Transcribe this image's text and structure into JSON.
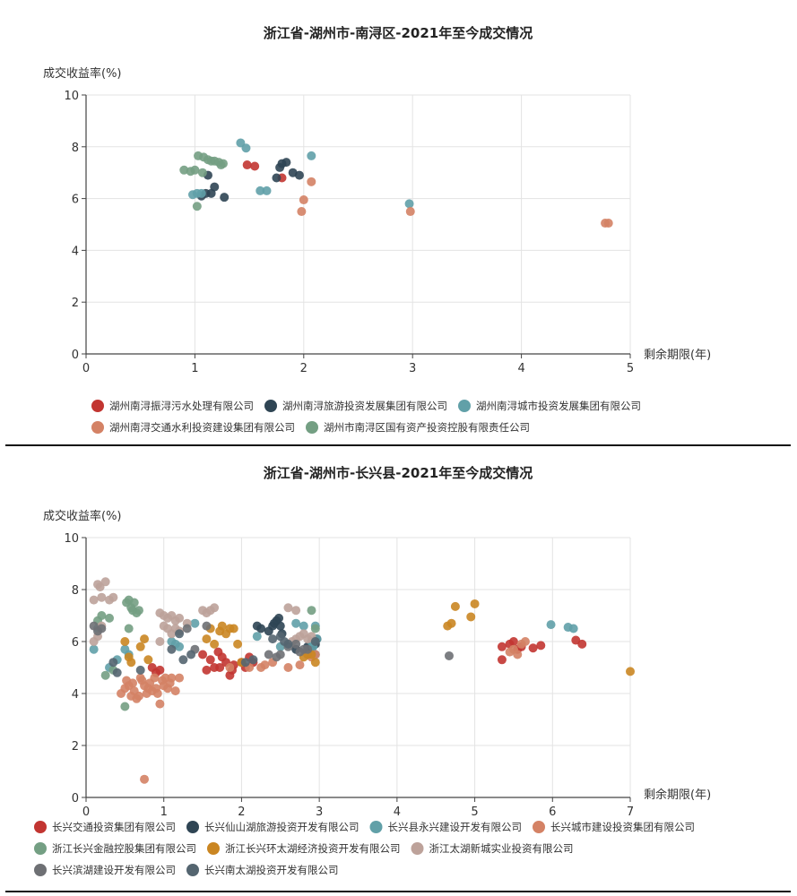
{
  "chart_data": [
    {
      "type": "scatter",
      "title": "浙江省-湖州市-南浔区-2021年至今成交情况",
      "xlabel": "剩余期限(年)",
      "ylabel": "成交收益率(%)",
      "xlim": [
        0,
        5
      ],
      "ylim": [
        0,
        10
      ],
      "xticks": [
        "0",
        "1",
        "2",
        "3",
        "4",
        "5"
      ],
      "yticks": [
        "0",
        "2",
        "4",
        "6",
        "8",
        "10"
      ],
      "grid": true,
      "legend_position": "bottom",
      "series": [
        {
          "name": "湖州南浔振浔污水处理有限公司",
          "color": "#c23531",
          "points": [
            [
              1.48,
              7.3
            ],
            [
              1.55,
              7.25
            ],
            [
              1.8,
              6.8
            ]
          ]
        },
        {
          "name": "湖州南浔旅游投资发展集团有限公司",
          "color": "#2f4554",
          "points": [
            [
              1.06,
              6.1
            ],
            [
              1.1,
              6.2
            ],
            [
              1.12,
              6.9
            ],
            [
              1.15,
              6.2
            ],
            [
              1.18,
              6.45
            ],
            [
              1.27,
              6.05
            ],
            [
              1.75,
              6.8
            ],
            [
              1.78,
              7.2
            ],
            [
              1.8,
              7.35
            ],
            [
              1.84,
              7.4
            ],
            [
              1.9,
              7.0
            ],
            [
              1.96,
              6.9
            ]
          ]
        },
        {
          "name": "湖州南浔城市投资发展集团有限公司",
          "color": "#61a0a8",
          "points": [
            [
              0.98,
              6.15
            ],
            [
              1.02,
              6.2
            ],
            [
              1.06,
              6.2
            ],
            [
              1.42,
              8.15
            ],
            [
              1.47,
              7.95
            ],
            [
              1.6,
              6.3
            ],
            [
              1.66,
              6.3
            ],
            [
              2.07,
              7.65
            ],
            [
              2.97,
              5.8
            ]
          ]
        },
        {
          "name": "湖州南浔交通水利投资建设集团有限公司",
          "color": "#d48265",
          "points": [
            [
              1.98,
              5.5
            ],
            [
              2.0,
              5.95
            ],
            [
              2.07,
              6.65
            ],
            [
              2.98,
              5.5
            ],
            [
              4.77,
              5.05
            ],
            [
              4.8,
              5.05
            ]
          ]
        },
        {
          "name": "湖州市南浔区国有资产投资控股有限责任公司",
          "color": "#749f83",
          "points": [
            [
              0.9,
              7.1
            ],
            [
              0.96,
              7.05
            ],
            [
              1.0,
              7.1
            ],
            [
              1.03,
              7.65
            ],
            [
              1.07,
              7.0
            ],
            [
              1.08,
              7.6
            ],
            [
              1.12,
              7.5
            ],
            [
              1.15,
              7.45
            ],
            [
              1.18,
              7.45
            ],
            [
              1.22,
              7.4
            ],
            [
              1.24,
              7.3
            ],
            [
              1.26,
              7.35
            ],
            [
              1.02,
              5.7
            ]
          ]
        }
      ]
    },
    {
      "type": "scatter",
      "title": "浙江省-湖州市-长兴县-2021年至今成交情况",
      "xlabel": "剩余期限(年)",
      "ylabel": "成交收益率(%)",
      "xlim": [
        0,
        7
      ],
      "ylim": [
        0,
        10
      ],
      "xticks": [
        "0",
        "1",
        "2",
        "3",
        "4",
        "5",
        "6",
        "7"
      ],
      "yticks": [
        "0",
        "2",
        "4",
        "6",
        "8",
        "10"
      ],
      "grid": true,
      "legend_position": "bottom",
      "series": [
        {
          "name": "长兴交通投资集团有限公司",
          "color": "#c23531",
          "points": [
            [
              0.85,
              5.0
            ],
            [
              0.9,
              4.8
            ],
            [
              0.95,
              4.9
            ],
            [
              1.5,
              5.5
            ],
            [
              1.55,
              4.9
            ],
            [
              1.6,
              5.3
            ],
            [
              1.65,
              5.0
            ],
            [
              1.7,
              5.6
            ],
            [
              1.72,
              5.0
            ],
            [
              1.75,
              5.4
            ],
            [
              1.8,
              5.2
            ],
            [
              1.85,
              4.7
            ],
            [
              1.88,
              4.9
            ],
            [
              1.9,
              5.1
            ],
            [
              2.0,
              5.2
            ],
            [
              2.05,
              5.0
            ],
            [
              2.1,
              5.4
            ],
            [
              2.15,
              5.2
            ],
            [
              5.35,
              5.3
            ],
            [
              5.35,
              5.8
            ],
            [
              5.45,
              5.9
            ],
            [
              5.5,
              6.0
            ],
            [
              5.55,
              5.7
            ],
            [
              5.6,
              5.8
            ],
            [
              5.75,
              5.75
            ],
            [
              5.85,
              5.85
            ],
            [
              6.3,
              6.05
            ],
            [
              6.38,
              5.9
            ]
          ]
        },
        {
          "name": "长兴仙山湖旅游投资开发有限公司",
          "color": "#2f4554",
          "points": [
            [
              2.35,
              6.4
            ],
            [
              2.4,
              6.6
            ],
            [
              2.42,
              6.7
            ],
            [
              2.45,
              6.8
            ],
            [
              2.48,
              6.9
            ],
            [
              2.5,
              6.6
            ],
            [
              2.52,
              6.3
            ],
            [
              2.2,
              6.6
            ],
            [
              2.25,
              6.5
            ],
            [
              2.85,
              5.8
            ],
            [
              2.9,
              5.7
            ],
            [
              2.95,
              5.9
            ],
            [
              2.97,
              6.1
            ],
            [
              2.7,
              5.7
            ]
          ]
        },
        {
          "name": "长兴县永兴建设开发有限公司",
          "color": "#61a0a8",
          "points": [
            [
              0.1,
              5.7
            ],
            [
              0.15,
              6.5
            ],
            [
              0.3,
              5.0
            ],
            [
              0.4,
              5.3
            ],
            [
              0.5,
              5.7
            ],
            [
              0.55,
              5.5
            ],
            [
              1.1,
              6.0
            ],
            [
              1.15,
              5.9
            ],
            [
              1.2,
              5.8
            ],
            [
              1.4,
              6.7
            ],
            [
              2.2,
              6.2
            ],
            [
              2.5,
              5.8
            ],
            [
              2.8,
              6.6
            ],
            [
              2.9,
              6.0
            ],
            [
              2.92,
              5.8
            ],
            [
              2.95,
              6.6
            ],
            [
              2.97,
              6.1
            ],
            [
              2.7,
              6.7
            ],
            [
              5.98,
              6.65
            ],
            [
              6.2,
              6.55
            ],
            [
              6.27,
              6.5
            ],
            [
              2.95,
              5.5
            ]
          ]
        },
        {
          "name": "长兴城市建设投资集团有限公司",
          "color": "#d48265",
          "points": [
            [
              0.45,
              4.0
            ],
            [
              0.5,
              4.2
            ],
            [
              0.52,
              4.5
            ],
            [
              0.55,
              4.3
            ],
            [
              0.58,
              3.9
            ],
            [
              0.6,
              4.4
            ],
            [
              0.62,
              4.1
            ],
            [
              0.65,
              3.8
            ],
            [
              0.68,
              3.9
            ],
            [
              0.7,
              4.6
            ],
            [
              0.72,
              4.5
            ],
            [
              0.75,
              4.3
            ],
            [
              0.78,
              4.0
            ],
            [
              0.8,
              4.2
            ],
            [
              0.82,
              4.4
            ],
            [
              0.85,
              4.1
            ],
            [
              0.88,
              4.6
            ],
            [
              0.9,
              4.2
            ],
            [
              0.92,
              4.0
            ],
            [
              0.95,
              3.6
            ],
            [
              0.98,
              4.5
            ],
            [
              1.0,
              4.3
            ],
            [
              1.02,
              4.6
            ],
            [
              1.05,
              4.2
            ],
            [
              1.08,
              4.4
            ],
            [
              1.1,
              4.6
            ],
            [
              1.15,
              4.1
            ],
            [
              1.2,
              4.6
            ],
            [
              0.75,
              0.7
            ],
            [
              1.85,
              5.0
            ],
            [
              2.1,
              5.0
            ],
            [
              2.25,
              5.0
            ],
            [
              2.3,
              5.1
            ],
            [
              2.4,
              5.2
            ],
            [
              2.6,
              5.0
            ],
            [
              2.75,
              5.1
            ],
            [
              2.9,
              5.4
            ],
            [
              2.95,
              5.5
            ],
            [
              5.45,
              5.6
            ],
            [
              5.5,
              5.7
            ],
            [
              5.55,
              5.5
            ],
            [
              5.6,
              5.9
            ],
            [
              5.65,
              6.0
            ]
          ]
        },
        {
          "name": "浙江长兴金融控股集团有限公司",
          "color": "#749f83",
          "points": [
            [
              0.15,
              6.8
            ],
            [
              0.2,
              7.0
            ],
            [
              0.3,
              6.9
            ],
            [
              0.52,
              7.5
            ],
            [
              0.55,
              7.6
            ],
            [
              0.58,
              7.3
            ],
            [
              0.6,
              7.2
            ],
            [
              0.62,
              7.5
            ],
            [
              0.65,
              7.1
            ],
            [
              0.68,
              7.2
            ],
            [
              0.55,
              6.5
            ],
            [
              0.5,
              3.5
            ],
            [
              0.35,
              4.9
            ],
            [
              0.25,
              4.7
            ],
            [
              2.9,
              7.2
            ],
            [
              2.95,
              6.5
            ]
          ]
        },
        {
          "name": "浙江长兴环太湖经济投资开发有限公司",
          "color": "#ca8622",
          "points": [
            [
              0.5,
              6.0
            ],
            [
              0.55,
              5.4
            ],
            [
              0.58,
              5.2
            ],
            [
              0.7,
              5.8
            ],
            [
              0.8,
              5.3
            ],
            [
              0.75,
              6.1
            ],
            [
              1.55,
              6.1
            ],
            [
              1.6,
              6.5
            ],
            [
              1.65,
              5.9
            ],
            [
              1.72,
              6.4
            ],
            [
              1.75,
              6.6
            ],
            [
              1.8,
              6.3
            ],
            [
              1.85,
              6.5
            ],
            [
              1.9,
              6.5
            ],
            [
              1.95,
              5.9
            ],
            [
              2.0,
              5.2
            ],
            [
              2.8,
              5.4
            ],
            [
              2.85,
              5.5
            ],
            [
              2.9,
              5.5
            ],
            [
              2.95,
              5.2
            ],
            [
              4.65,
              6.6
            ],
            [
              4.7,
              6.7
            ],
            [
              4.75,
              7.35
            ],
            [
              4.95,
              6.95
            ],
            [
              5.0,
              7.45
            ],
            [
              7.0,
              4.85
            ]
          ]
        },
        {
          "name": "浙江太湖新城实业投资有限公司",
          "color": "#bda29a",
          "points": [
            [
              0.1,
              7.6
            ],
            [
              0.15,
              8.2
            ],
            [
              0.18,
              8.1
            ],
            [
              0.2,
              7.7
            ],
            [
              0.25,
              8.3
            ],
            [
              0.3,
              7.6
            ],
            [
              0.35,
              7.7
            ],
            [
              0.95,
              7.1
            ],
            [
              1.0,
              7.0
            ],
            [
              1.05,
              6.9
            ],
            [
              1.1,
              7.0
            ],
            [
              1.15,
              6.8
            ],
            [
              1.2,
              6.9
            ],
            [
              1.3,
              6.7
            ],
            [
              1.0,
              6.6
            ],
            [
              1.05,
              6.5
            ],
            [
              1.1,
              6.3
            ],
            [
              1.15,
              6.5
            ],
            [
              1.2,
              6.4
            ],
            [
              1.5,
              7.2
            ],
            [
              1.55,
              7.1
            ],
            [
              1.6,
              7.2
            ],
            [
              1.65,
              7.3
            ],
            [
              2.6,
              7.3
            ],
            [
              2.7,
              7.2
            ],
            [
              2.65,
              6.0
            ],
            [
              2.7,
              6.1
            ],
            [
              2.75,
              6.2
            ],
            [
              2.8,
              6.3
            ],
            [
              2.85,
              6.1
            ],
            [
              2.9,
              6.2
            ],
            [
              0.1,
              6.0
            ],
            [
              0.15,
              6.2
            ],
            [
              0.2,
              6.6
            ],
            [
              0.95,
              6.0
            ]
          ]
        },
        {
          "name": "长兴滨湖建设开发有限公司",
          "color": "#6e7074",
          "points": [
            [
              0.1,
              6.6
            ],
            [
              0.15,
              6.4
            ],
            [
              0.2,
              6.5
            ],
            [
              1.3,
              6.5
            ],
            [
              1.4,
              5.7
            ],
            [
              1.55,
              6.6
            ],
            [
              2.35,
              5.5
            ],
            [
              2.45,
              5.4
            ],
            [
              2.5,
              5.5
            ],
            [
              2.6,
              5.8
            ],
            [
              2.7,
              5.9
            ],
            [
              2.75,
              5.6
            ],
            [
              2.8,
              5.7
            ],
            [
              2.85,
              5.7
            ],
            [
              4.67,
              5.45
            ]
          ]
        },
        {
          "name": "长兴南太湖投资开发有限公司",
          "color": "#546570",
          "points": [
            [
              0.35,
              5.2
            ],
            [
              0.4,
              4.8
            ],
            [
              0.7,
              4.9
            ],
            [
              1.25,
              5.3
            ],
            [
              1.35,
              5.5
            ],
            [
              1.2,
              6.3
            ],
            [
              1.1,
              5.7
            ],
            [
              2.05,
              5.2
            ],
            [
              2.15,
              5.3
            ],
            [
              2.4,
              6.1
            ],
            [
              2.5,
              6.2
            ],
            [
              2.55,
              6.0
            ],
            [
              2.6,
              5.9
            ],
            [
              2.95,
              6.0
            ]
          ]
        }
      ]
    }
  ]
}
